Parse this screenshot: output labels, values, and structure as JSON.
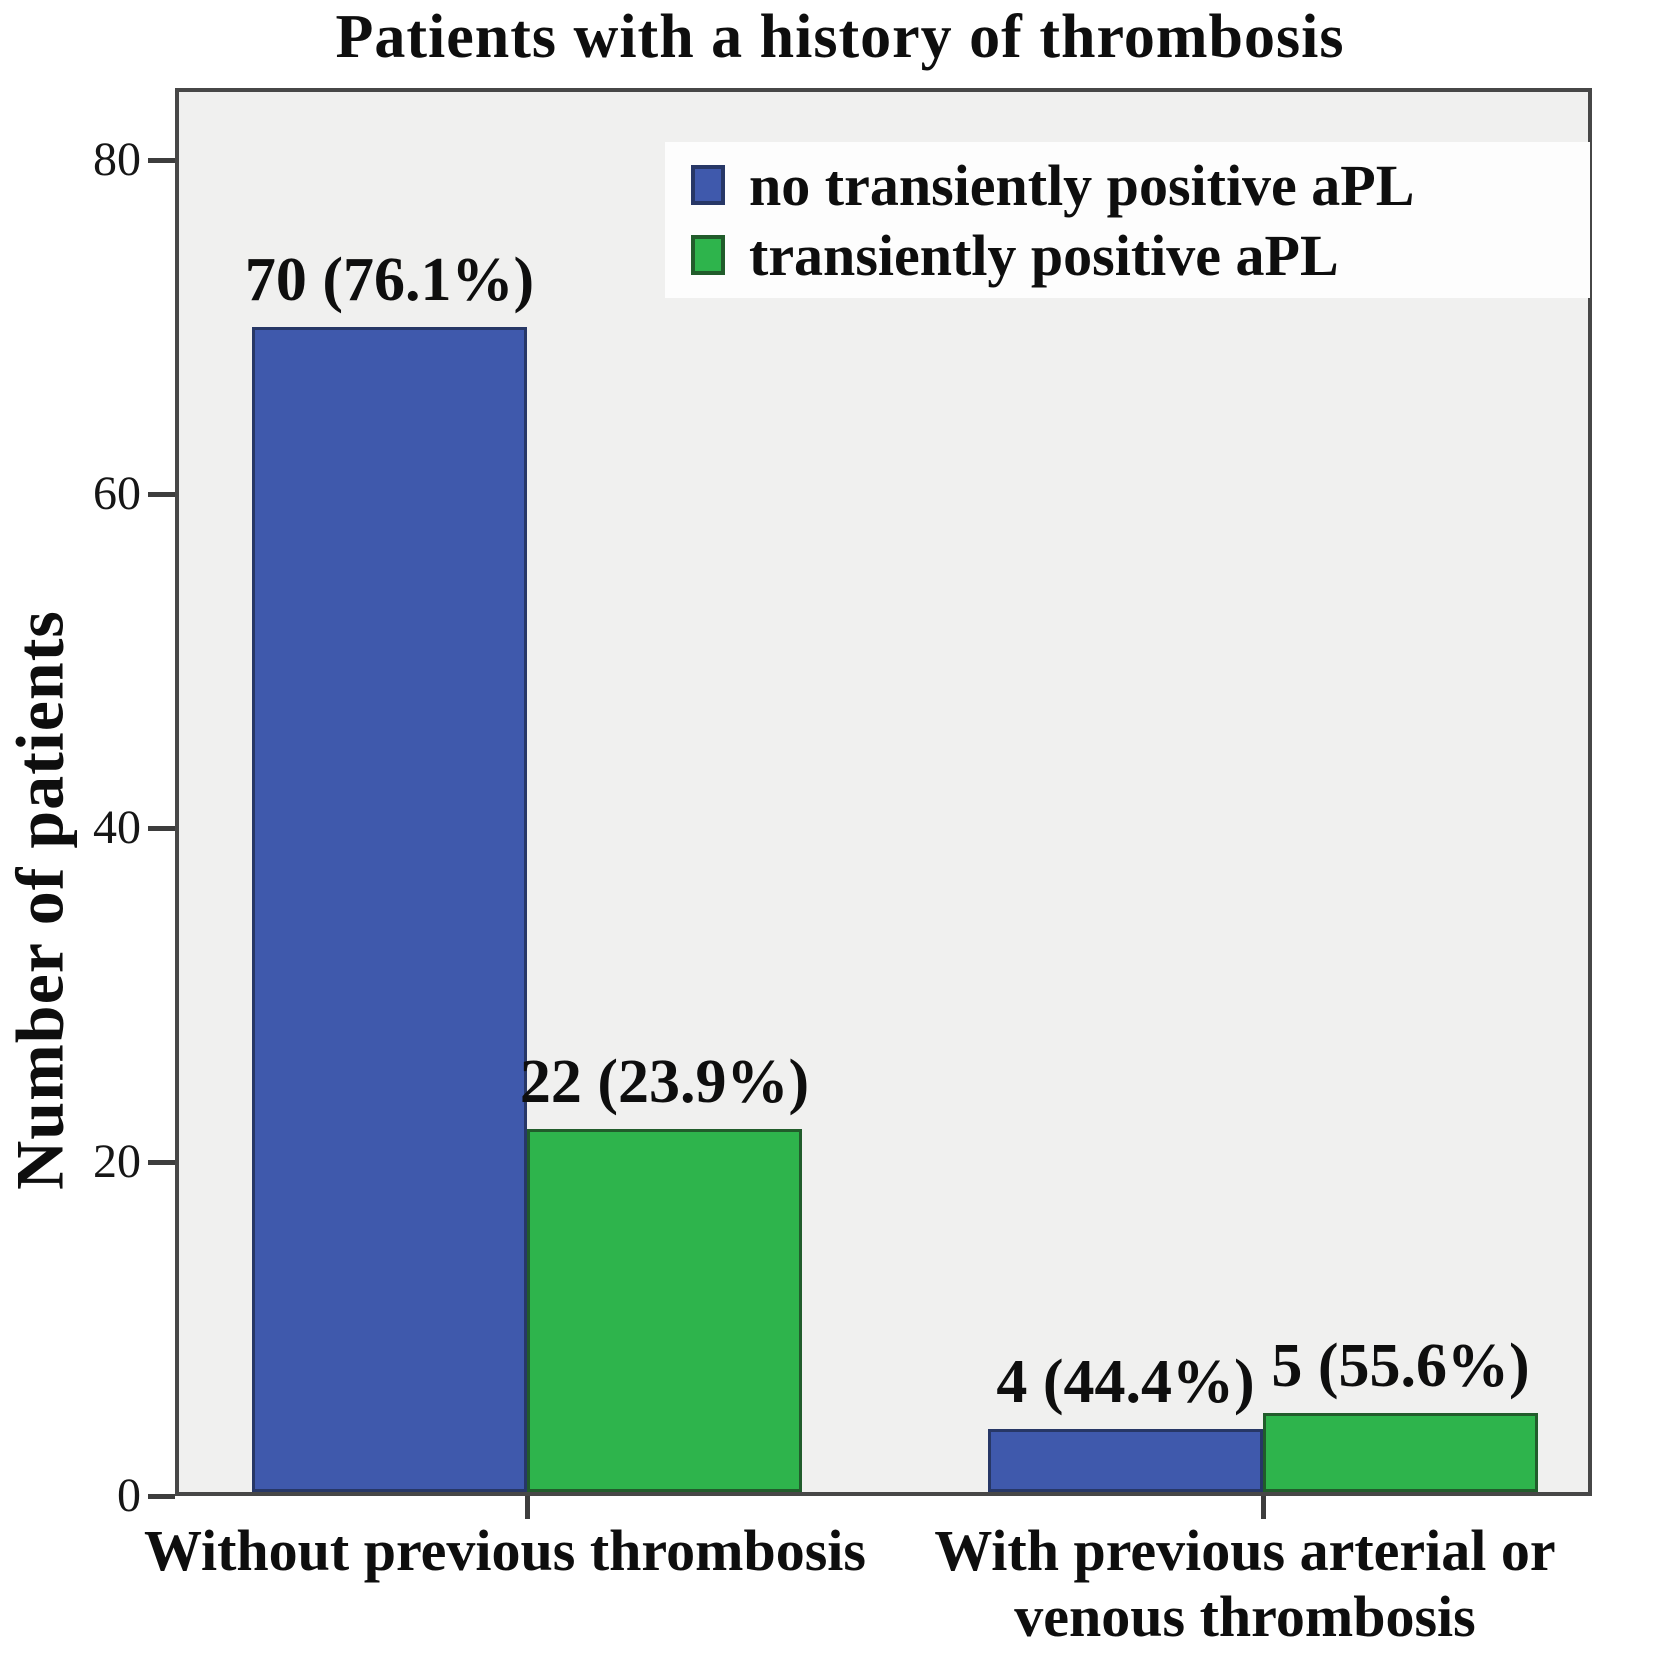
{
  "chart_data": {
    "type": "bar",
    "title": "Patients with a history of thrombosis",
    "ylabel": "Number of patients",
    "xlabel": "",
    "categories": [
      "Without previous thrombosis",
      "With previous arterial or venous thrombosis"
    ],
    "series": [
      {
        "name": "no transiently positive aPL",
        "values": [
          70,
          4
        ],
        "data_labels": [
          "70 (76.1%)",
          "4 (44.4%)"
        ],
        "color": "#3f59ac",
        "border_color": "#273766"
      },
      {
        "name": "transiently positive aPL",
        "values": [
          22,
          5
        ],
        "data_labels": [
          "22 (23.9%)",
          "5 (55.6%)"
        ],
        "color": "#2eb44c",
        "border_color": "#215c2b"
      }
    ],
    "y_ticks": [
      0,
      20,
      40,
      60,
      80
    ],
    "ylim": [
      0,
      84
    ],
    "grid": false,
    "legend_position": "top-right",
    "plot_background": "#f0f0ef",
    "axis_color": "#474747",
    "tick_color": "#3d3d3d",
    "text_color": "#0e0e0e"
  }
}
